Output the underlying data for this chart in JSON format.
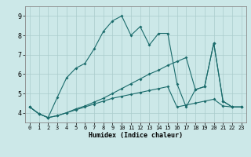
{
  "xlabel": "Humidex (Indice chaleur)",
  "xlim": [
    -0.5,
    23.5
  ],
  "ylim": [
    3.5,
    9.5
  ],
  "yticks": [
    4,
    5,
    6,
    7,
    8,
    9
  ],
  "xticks": [
    0,
    1,
    2,
    3,
    4,
    5,
    6,
    7,
    8,
    9,
    10,
    11,
    12,
    13,
    14,
    15,
    16,
    17,
    18,
    19,
    20,
    21,
    22,
    23
  ],
  "background_color": "#cce8e8",
  "grid_color": "#aacccc",
  "line_color": "#1a6b6b",
  "line1_x": [
    0,
    1,
    2,
    3,
    4,
    5,
    6,
    7,
    8,
    9,
    10,
    11,
    12,
    13,
    14,
    15,
    16,
    17,
    18,
    19,
    20,
    21,
    22,
    23
  ],
  "line1_y": [
    4.3,
    3.95,
    3.75,
    4.8,
    5.8,
    6.3,
    6.55,
    7.3,
    8.2,
    8.75,
    9.0,
    8.0,
    8.45,
    7.5,
    8.1,
    8.1,
    5.5,
    4.3,
    5.2,
    5.35,
    7.6,
    4.6,
    4.3,
    4.3
  ],
  "line2_x": [
    0,
    1,
    2,
    3,
    4,
    5,
    6,
    7,
    8,
    9,
    10,
    11,
    12,
    13,
    14,
    15,
    16,
    17,
    18,
    19,
    20,
    21,
    22,
    23
  ],
  "line2_y": [
    4.3,
    3.95,
    3.75,
    3.85,
    4.0,
    4.2,
    4.35,
    4.55,
    4.75,
    5.0,
    5.25,
    5.5,
    5.75,
    6.0,
    6.2,
    6.45,
    6.65,
    6.85,
    5.2,
    5.35,
    7.6,
    4.6,
    4.3,
    4.3
  ],
  "line3_x": [
    0,
    1,
    2,
    3,
    4,
    5,
    6,
    7,
    8,
    9,
    10,
    11,
    12,
    13,
    14,
    15,
    16,
    17,
    18,
    19,
    20,
    21,
    22,
    23
  ],
  "line3_y": [
    4.3,
    3.95,
    3.75,
    3.85,
    4.0,
    4.15,
    4.3,
    4.45,
    4.6,
    4.75,
    4.85,
    4.95,
    5.05,
    5.15,
    5.25,
    5.35,
    4.3,
    4.4,
    4.5,
    4.6,
    4.7,
    4.35,
    4.3,
    4.3
  ]
}
